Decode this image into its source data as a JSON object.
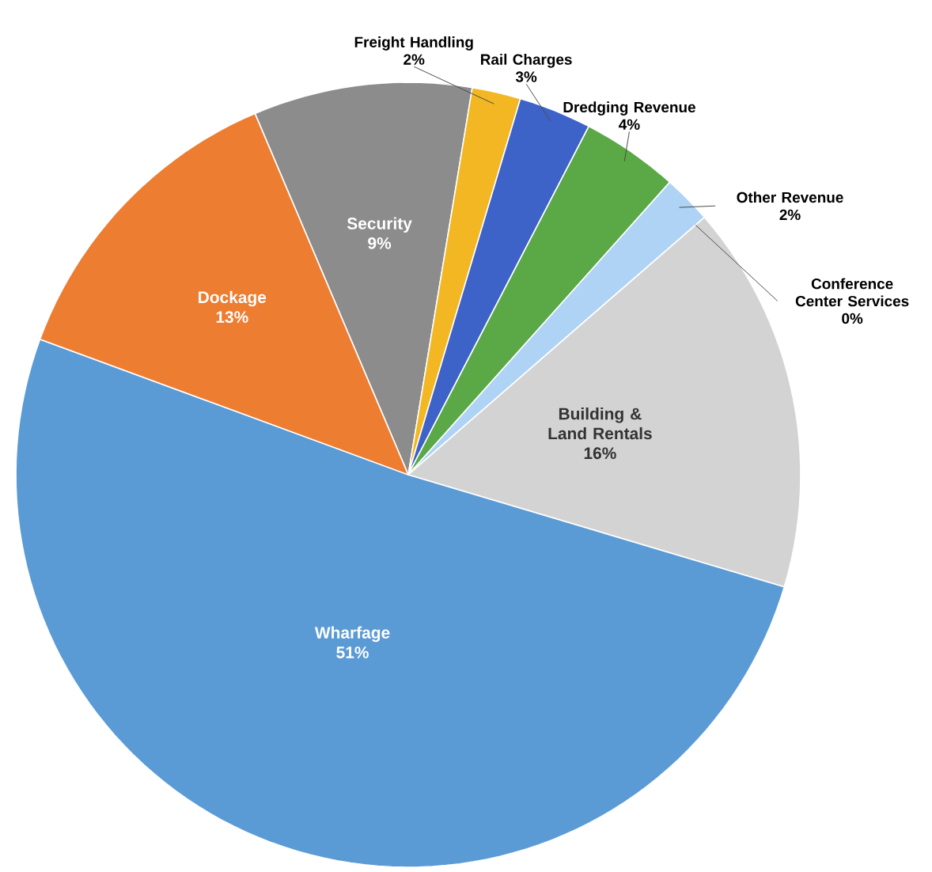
{
  "chart_data": {
    "type": "pie",
    "categories": [
      "Security",
      "Freight Handling",
      "Rail Charges",
      "Dredging Revenue",
      "Other Revenue",
      "Conference Center Services",
      "Building & Land Rentals",
      "Wharfage",
      "Dockage"
    ],
    "values": [
      9,
      2,
      3,
      4,
      2,
      0,
      16,
      51,
      13
    ],
    "value_labels": [
      "9%",
      "2%",
      "3%",
      "4%",
      "2%",
      "0%",
      "16%",
      "51%",
      "13%"
    ],
    "colors": [
      "#8c8c8c",
      "#f2b722",
      "#3d62c8",
      "#5ba847",
      "#aed3f5",
      "#e8803f",
      "#d3d3d3",
      "#5b9bd5",
      "#ed7d31"
    ]
  }
}
